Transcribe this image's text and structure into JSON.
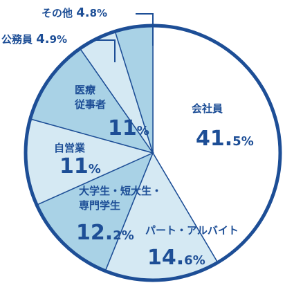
{
  "chart_data": {
    "type": "pie",
    "slices": [
      {
        "category": "会社員",
        "value": 41.5,
        "value_text": "41.",
        "value_decimal": "5",
        "unit": "%",
        "color": "#ffffff"
      },
      {
        "category": "パート・アルバイト",
        "value": 14.6,
        "value_text": "14.",
        "value_decimal": "6",
        "unit": "%",
        "color": "#d5e9f3"
      },
      {
        "category_lines": [
          "大学生・短大生・",
          "専門学生"
        ],
        "value": 12.2,
        "value_text": "12.",
        "value_decimal": "2",
        "unit": "%",
        "color": "#a9d2e6"
      },
      {
        "category": "自営業",
        "value": 11,
        "value_text": "11",
        "value_decimal": "",
        "unit": "%",
        "color": "#d5e9f3"
      },
      {
        "category_lines": [
          "医療",
          "従事者"
        ],
        "value": 11,
        "value_text": "11",
        "value_decimal": "",
        "unit": "%",
        "color": "#a9d2e6"
      },
      {
        "category": "公務員",
        "value": 4.9,
        "value_text": "4.",
        "value_decimal": "9",
        "unit": "%",
        "color": "#d5e9f3"
      },
      {
        "category": "その他",
        "value": 4.8,
        "value_text": "4.",
        "value_decimal": "8",
        "unit": "%",
        "color": "#a9d2e6"
      }
    ],
    "start": "12 o'clock",
    "direction": "clockwise",
    "stroke_color": "#1d4e96",
    "text_color": "#1d4e96"
  }
}
